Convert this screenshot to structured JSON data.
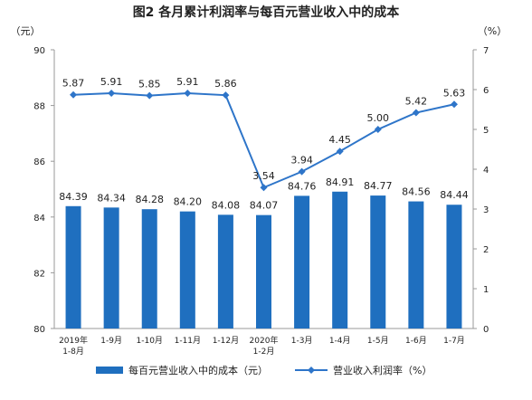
{
  "chart_data": {
    "type": "bar",
    "title": "图2  各月累计利润率与每百元营业收入中的成本",
    "left_unit": "（元）",
    "right_unit": "（%）",
    "categories": [
      "2019年\n1-8月",
      "1-9月",
      "1-10月",
      "1-11月",
      "1-12月",
      "2020年\n1-2月",
      "1-3月",
      "1-4月",
      "1-5月",
      "1-6月",
      "1-7月"
    ],
    "left_axis": {
      "min": 80,
      "max": 90,
      "ticks": [
        80,
        82,
        84,
        86,
        88,
        90
      ]
    },
    "right_axis": {
      "min": 0,
      "max": 7,
      "ticks": [
        0,
        1,
        2,
        3,
        4,
        5,
        6,
        7
      ]
    },
    "series": [
      {
        "name": "每百元营业收入中的成本（元）",
        "type": "bar",
        "axis": "left",
        "color": "#1f6fbf",
        "values": [
          84.39,
          84.34,
          84.28,
          84.2,
          84.08,
          84.07,
          84.76,
          84.91,
          84.77,
          84.56,
          84.44
        ],
        "labels": [
          "84.39",
          "84.34",
          "84.28",
          "84.20",
          "84.08",
          "84.07",
          "84.76",
          "84.91",
          "84.77",
          "84.56",
          "84.44"
        ]
      },
      {
        "name": "营业收入利润率（%）",
        "type": "line",
        "axis": "right",
        "color": "#2e75c9",
        "values": [
          5.87,
          5.91,
          5.85,
          5.91,
          5.86,
          3.54,
          3.94,
          4.45,
          5.0,
          5.42,
          5.63
        ],
        "labels": [
          "5.87",
          "5.91",
          "5.85",
          "5.91",
          "5.86",
          "3.54",
          "3.94",
          "4.45",
          "5.00",
          "5.42",
          "5.63"
        ]
      }
    ],
    "grid": false,
    "legend": "bottom"
  }
}
